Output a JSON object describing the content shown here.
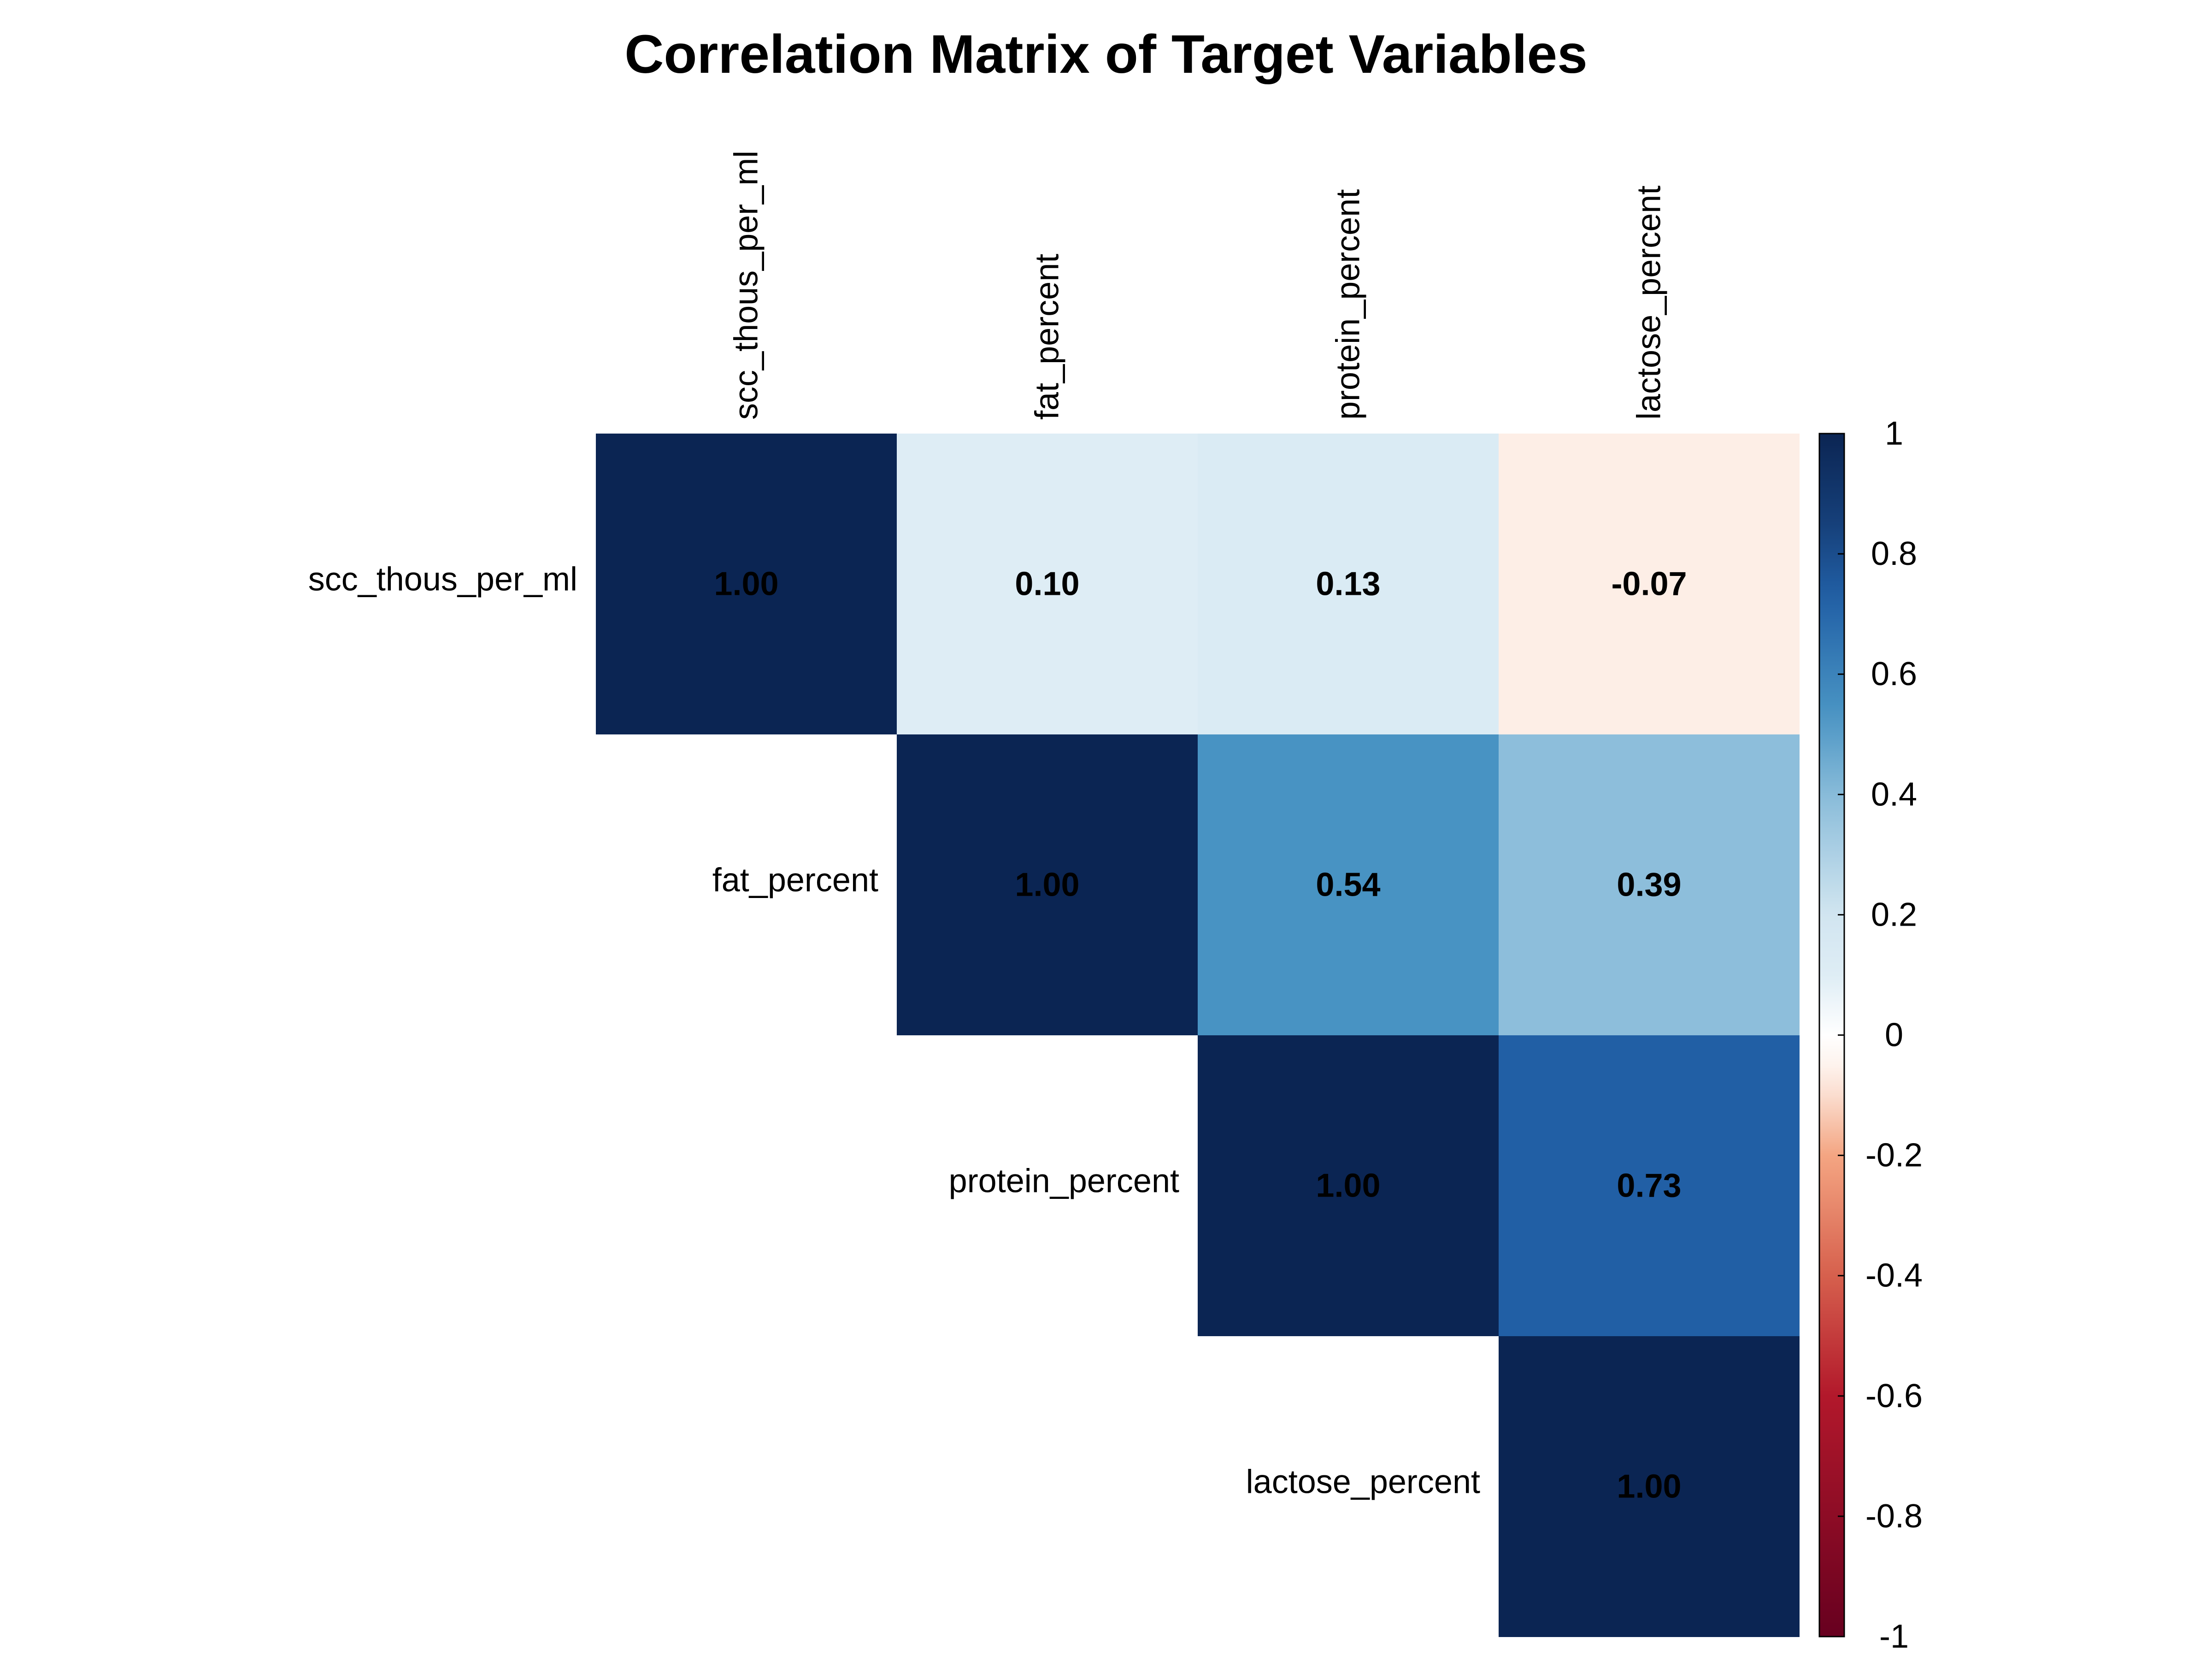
{
  "chart_data": {
    "type": "heatmap",
    "title": "Correlation Matrix of Target Variables",
    "variables": [
      "scc_thous_per_ml",
      "fat_percent",
      "protein_percent",
      "lactose_percent"
    ],
    "matrix": [
      [
        1.0,
        0.1,
        0.13,
        -0.07
      ],
      [
        0.1,
        1.0,
        0.54,
        0.39
      ],
      [
        0.13,
        0.54,
        1.0,
        0.73
      ],
      [
        -0.07,
        0.39,
        0.73,
        1.0
      ]
    ],
    "cell_labels": [
      [
        "1.00",
        "0.10",
        "0.13",
        "-0.07"
      ],
      [
        "",
        "1.00",
        "0.54",
        "0.39"
      ],
      [
        "",
        "",
        "1.00",
        "0.73"
      ],
      [
        "",
        "",
        "",
        "1.00"
      ]
    ],
    "display": "upper",
    "colorbar": {
      "range": [
        -1,
        1
      ],
      "ticks": [
        "1",
        "0.8",
        "0.6",
        "0.4",
        "0.2",
        "0",
        "-0.2",
        "-0.4",
        "-0.6",
        "-0.8",
        "-1"
      ],
      "tick_values": [
        1,
        0.8,
        0.6,
        0.4,
        0.2,
        0,
        -0.2,
        -0.4,
        -0.6,
        -0.8,
        -1
      ],
      "colors": {
        "min": "#67001f",
        "low_mid": "#d6604d",
        "mid": "#ffffff",
        "high_mid": "#4393c3",
        "max": "#0b2553"
      }
    }
  }
}
